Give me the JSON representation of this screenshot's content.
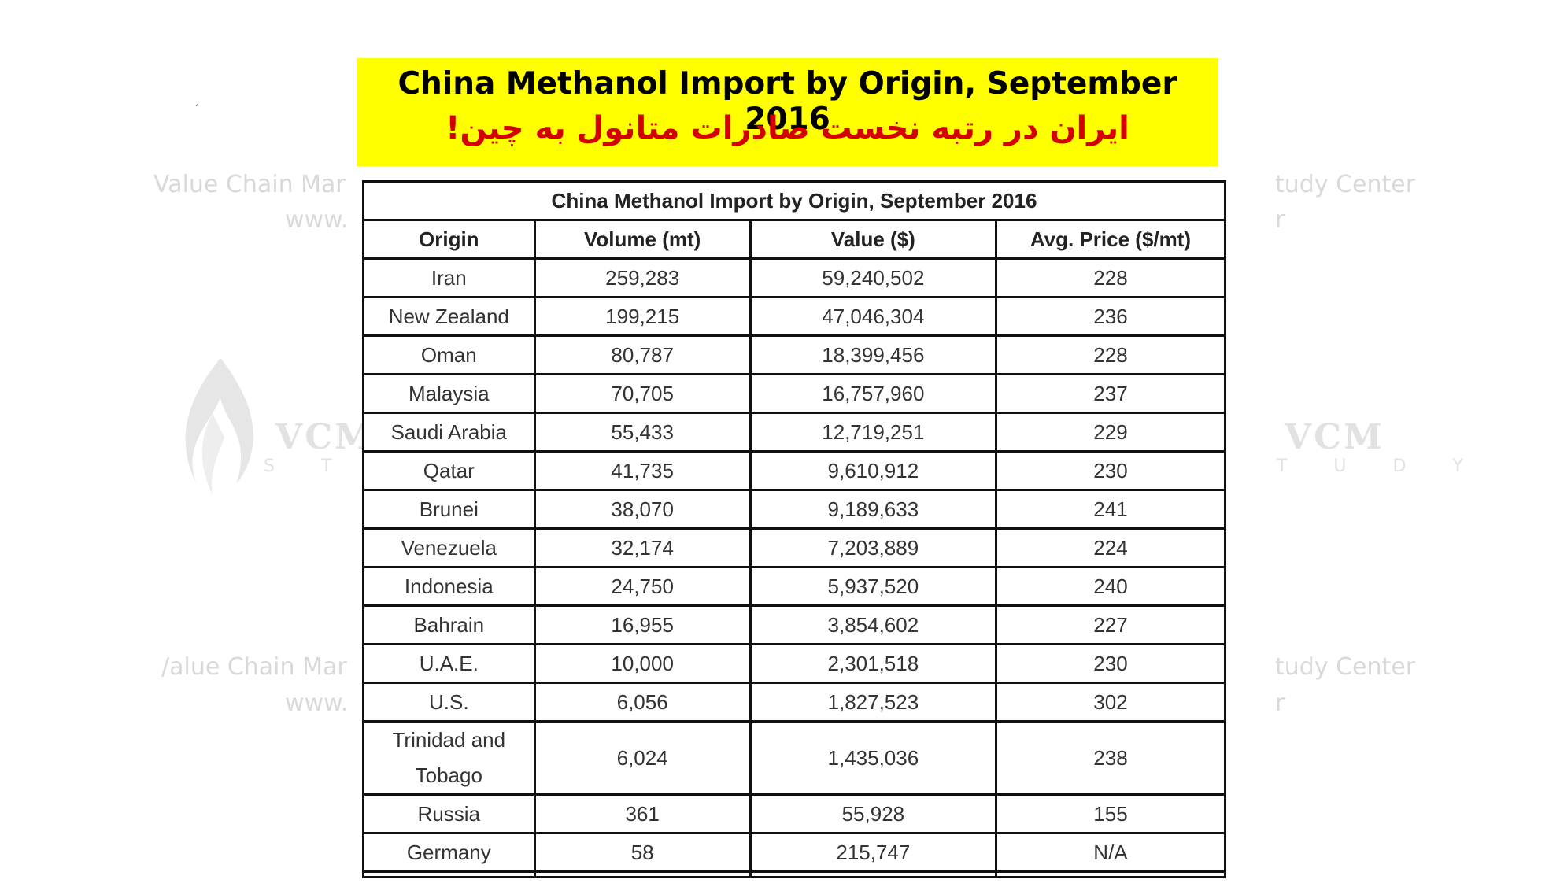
{
  "banner": {
    "title_en": "China Methanol Import by Origin, September 2016",
    "title_fa": "ایران در رتبه نخست صادرات متانول به چین!"
  },
  "watermark": {
    "line1_left_a": "Value Chain Mar",
    "line2_left_a": "www.",
    "line1_left_b": "/alue Chain Mar",
    "line2_left_b": "www.",
    "line1_right": "tudy Center",
    "line2_right": "r",
    "logo_text": "VCM",
    "logo_sub_left": "S T U",
    "logo_sub_right": "T U D Y"
  },
  "table": {
    "title": "China Methanol Import by Origin, September 2016",
    "headers": [
      "Origin",
      "Volume (mt)",
      "Value ($)",
      "Avg. Price ($/mt)"
    ],
    "rows": [
      [
        "Iran",
        "259,283",
        "59,240,502",
        "228"
      ],
      [
        "New Zealand",
        "199,215",
        "47,046,304",
        "236"
      ],
      [
        "Oman",
        "80,787",
        "18,399,456",
        "228"
      ],
      [
        "Malaysia",
        "70,705",
        "16,757,960",
        "237"
      ],
      [
        "Saudi Arabia",
        "55,433",
        "12,719,251",
        "229"
      ],
      [
        "Qatar",
        "41,735",
        "9,610,912",
        "230"
      ],
      [
        "Brunei",
        "38,070",
        "9,189,633",
        "241"
      ],
      [
        "Venezuela",
        "32,174",
        "7,203,889",
        "224"
      ],
      [
        "Indonesia",
        "24,750",
        "5,937,520",
        "240"
      ],
      [
        "Bahrain",
        "16,955",
        "3,854,602",
        "227"
      ],
      [
        "U.A.E.",
        "10,000",
        "2,301,518",
        "230"
      ],
      [
        "U.S.",
        "6,056",
        "1,827,523",
        "302"
      ],
      [
        "Trinidad and Tobago",
        "6,024",
        "1,435,036",
        "238"
      ],
      [
        "Russia",
        "361",
        "55,928",
        "155"
      ],
      [
        "Germany",
        "58",
        "215,747",
        "N/A"
      ]
    ]
  },
  "colors": {
    "banner_bg": "#ffff00",
    "banner_fa_text": "#d40000",
    "watermark": "#d9d9d9"
  }
}
